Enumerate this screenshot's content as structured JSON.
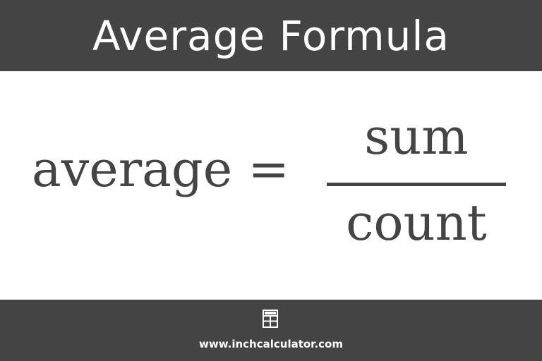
{
  "header": {
    "title": "Average Formula"
  },
  "formula": {
    "lhs": "average =",
    "numerator": "sum",
    "denominator": "count"
  },
  "footer": {
    "logo_icon": "calculator-icon",
    "website": "www.inchcalculator.com"
  },
  "colors": {
    "bar_background": "#444444",
    "text_dark": "#444444",
    "text_light": "#ffffff"
  }
}
